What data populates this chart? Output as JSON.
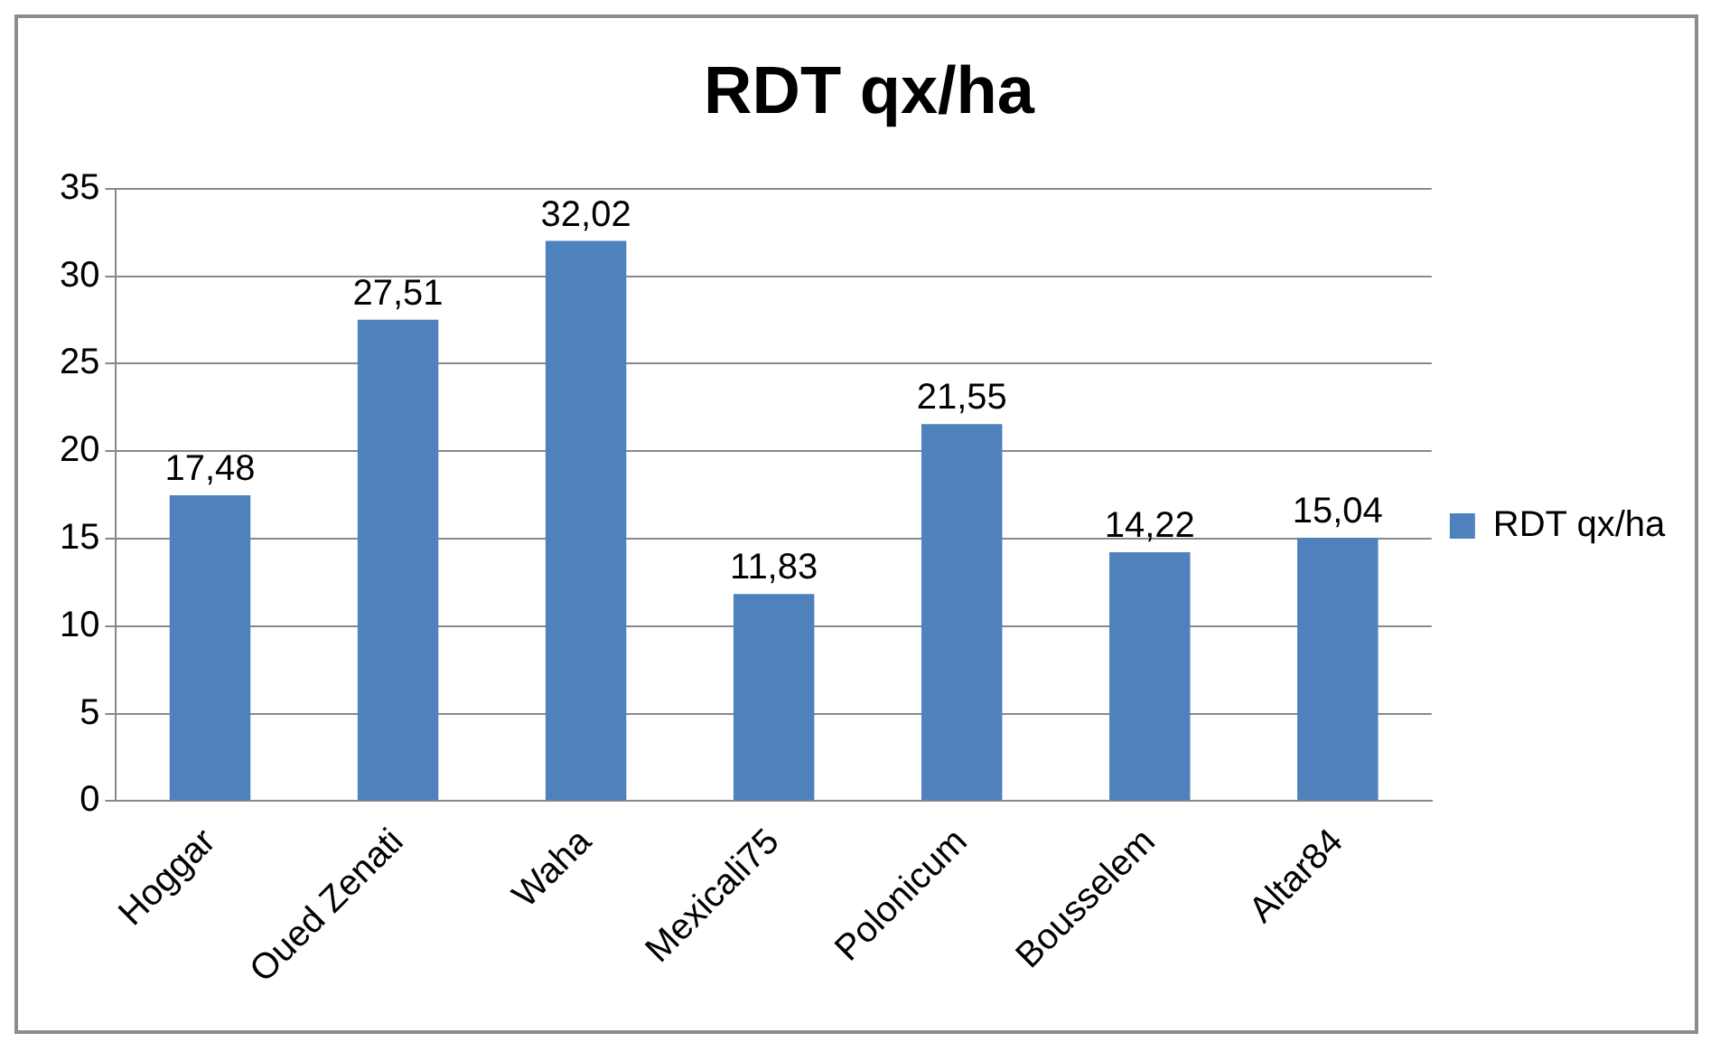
{
  "chart_data": {
    "type": "bar",
    "title": "RDT qx/ha",
    "categories": [
      "Hoggar",
      "Oued Zenati",
      "Waha",
      "Mexicali75",
      "Polonicum",
      "Bousselem",
      "Altar84"
    ],
    "series": [
      {
        "name": "RDT qx/ha",
        "color": "#4f81bd",
        "values": [
          17.48,
          27.51,
          32.02,
          11.83,
          21.55,
          14.22,
          15.04
        ],
        "value_labels": [
          "17,48",
          "27,51",
          "32,02",
          "11,83",
          "21,55",
          "14,22",
          "15,04"
        ]
      }
    ],
    "ylim": [
      0,
      35
    ],
    "yticks": [
      0,
      5,
      10,
      15,
      20,
      25,
      30,
      35
    ],
    "grid": "y",
    "legend": "right"
  }
}
